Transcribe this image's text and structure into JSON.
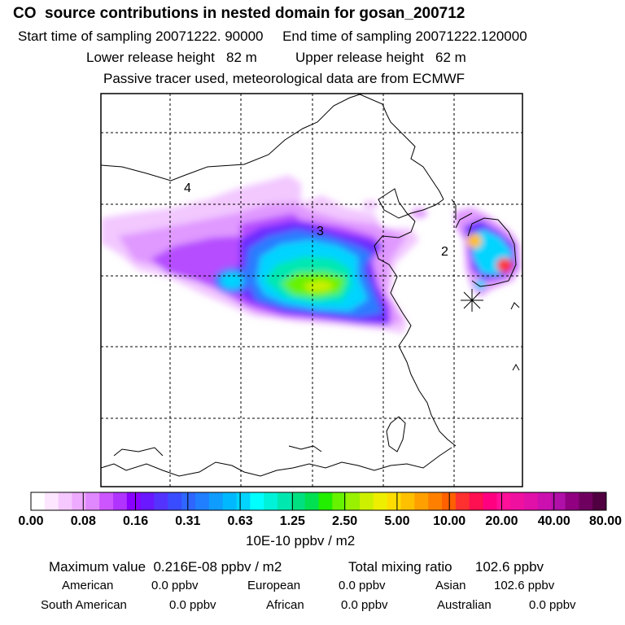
{
  "header": {
    "title": "CO  source contributions in nested domain for gosan_200712",
    "sampling": "Start time of sampling 20071222. 90000     End time of sampling 20071222.120000",
    "release": "Lower release height   82 m          Upper release height   62 m",
    "tracer": "Passive tracer used, meteorological data are from ECMWF"
  },
  "map": {
    "region_labels": [
      "4",
      "3",
      "2"
    ],
    "receptor_marker": "asterisk"
  },
  "colorbar": {
    "tick_labels": [
      "0.00",
      "0.08",
      "0.16",
      "0.31",
      "0.63",
      "1.25",
      "2.50",
      "5.00",
      "10.00",
      "20.00",
      "40.00",
      "80.00"
    ],
    "unit": "10E-10 ppbv / m2",
    "colors": [
      "#ffffff",
      "#fde6ff",
      "#f5c8ff",
      "#eeaaff",
      "#e088ff",
      "#cc55ff",
      "#b033ff",
      "#8a00ff",
      "#6a18ff",
      "#5533ff",
      "#3a4cff",
      "#2e66ff",
      "#1f7fff",
      "#0f9cff",
      "#00b8ff",
      "#00d4ff",
      "#00ffff",
      "#00f2d8",
      "#00e8b0",
      "#00e080",
      "#00e050",
      "#22ee00",
      "#66f200",
      "#99f000",
      "#ccf000",
      "#eeee00",
      "#ffdd00",
      "#ffc000",
      "#ffa000",
      "#ff8000",
      "#ff6000",
      "#ff3030",
      "#ff1050",
      "#ff0080",
      "#ff1098",
      "#f010a0",
      "#e010a8",
      "#cc10b0",
      "#b010a8",
      "#900080",
      "#700060",
      "#500040"
    ]
  },
  "summary": {
    "maximum": "Maximum value  0.216E-08 ppbv / m2",
    "total": "Total mixing ratio      102.6 ppbv",
    "row1": [
      {
        "label": "American",
        "value": "0.0 ppbv"
      },
      {
        "label": "European",
        "value": "0.0 ppbv"
      },
      {
        "label": "Asian",
        "value": "102.6 ppbv"
      }
    ],
    "row2": [
      {
        "label": "South American",
        "value": "0.0 ppbv"
      },
      {
        "label": "African",
        "value": "0.0 ppbv"
      },
      {
        "label": "Australian",
        "value": "0.0 ppbv"
      }
    ]
  }
}
